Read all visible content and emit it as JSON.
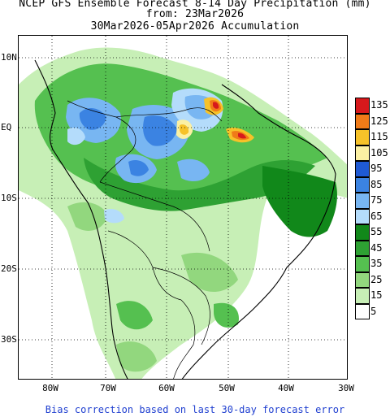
{
  "title": {
    "line1": "NCEP GFS Ensemble Forecast 8-14 Day Precipitation (mm)",
    "line2": "from: 23Mar2026",
    "line3": "30Mar2026-05Apr2026 Accumulation"
  },
  "axes": {
    "lat_labels": [
      "10N",
      "EQ",
      "10S",
      "20S",
      "30S"
    ],
    "lon_labels": [
      "80W",
      "70W",
      "60W",
      "50W",
      "40W",
      "30W"
    ]
  },
  "legend": {
    "items": [
      {
        "label": "135",
        "color": "#d7191c"
      },
      {
        "label": "125",
        "color": "#f07b18"
      },
      {
        "label": "115",
        "color": "#f6c229"
      },
      {
        "label": "105",
        "color": "#fbf0a3"
      },
      {
        "label": "95",
        "color": "#1f5ad4"
      },
      {
        "label": "85",
        "color": "#3b83e2"
      },
      {
        "label": "75",
        "color": "#78b6f2"
      },
      {
        "label": "65",
        "color": "#b4dcfb"
      },
      {
        "label": "55",
        "color": "#11881a"
      },
      {
        "label": "45",
        "color": "#2ea133"
      },
      {
        "label": "35",
        "color": "#55c050"
      },
      {
        "label": "25",
        "color": "#92d77e"
      },
      {
        "label": "15",
        "color": "#c7efb6"
      },
      {
        "label": "5",
        "color": "#ffffff"
      }
    ]
  },
  "footer": "Bias correction based on last 30-day forecast error"
}
